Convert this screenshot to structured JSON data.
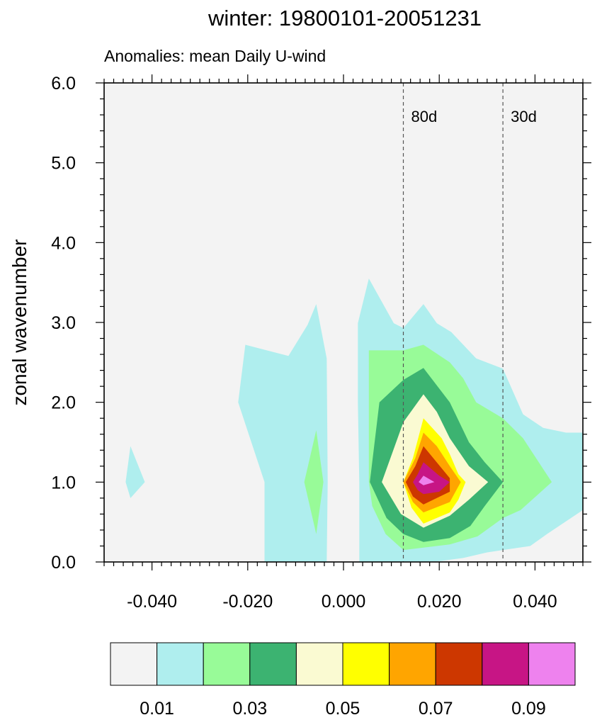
{
  "chart_data": {
    "type": "contour",
    "title": "winter: 19800101-20051231",
    "subtitle": "Anomalies: mean Daily U-wind",
    "xlabel": "",
    "ylabel": "zonal wavenumber",
    "xlim": [
      -0.05,
      0.05
    ],
    "ylim": [
      0,
      6
    ],
    "x_major_ticks": [
      -0.04,
      -0.02,
      0.0,
      0.02,
      0.04
    ],
    "x_tick_labels": [
      "-0.040",
      "-0.020",
      "0.000",
      "0.020",
      "0.040"
    ],
    "y_major_ticks": [
      0,
      1,
      2,
      3,
      4,
      5,
      6
    ],
    "y_tick_labels": [
      "0.0",
      "1.0",
      "2.0",
      "3.0",
      "4.0",
      "5.0",
      "6.0"
    ],
    "grid": false,
    "background_color": "#f3f3f3",
    "reference_lines": [
      {
        "x": 0.0125,
        "label": "80d"
      },
      {
        "x": 0.0333,
        "label": "30d"
      }
    ],
    "colorbar": {
      "colors": [
        "#f3f3f3",
        "#afeeee",
        "#98fb98",
        "#3cb371",
        "#fafad2",
        "#ffff00",
        "#ffa500",
        "#cd3700",
        "#c71585",
        "#ee82ee"
      ],
      "tick_labels": [
        "0.01",
        "0.03",
        "0.05",
        "0.07",
        "0.09"
      ],
      "levels": [
        0.01,
        0.02,
        0.03,
        0.04,
        0.05,
        0.06,
        0.07,
        0.08,
        0.09
      ]
    },
    "contour_levels": [
      {
        "level": 0.01,
        "color": "#afeeee",
        "polygons": [
          [
            [
              -0.0455,
              1.0
            ],
            [
              -0.0445,
              1.45
            ],
            [
              -0.0415,
              1.0
            ],
            [
              -0.0445,
              0.8
            ]
          ],
          [
            [
              -0.0165,
              0.0
            ],
            [
              -0.0165,
              1.0
            ],
            [
              -0.022,
              2.0
            ],
            [
              -0.0205,
              2.72
            ],
            [
              -0.0115,
              2.58
            ],
            [
              -0.0075,
              2.97
            ],
            [
              -0.0057,
              3.23
            ],
            [
              -0.0035,
              2.55
            ],
            [
              -0.0033,
              1.0
            ],
            [
              -0.0035,
              0.0
            ]
          ],
          [
            [
              0.0033,
              0.0
            ],
            [
              0.0033,
              1.0
            ],
            [
              0.003,
              2.0
            ],
            [
              0.003,
              2.99
            ],
            [
              0.0053,
              3.55
            ],
            [
              0.0105,
              2.99
            ],
            [
              0.0125,
              2.93
            ],
            [
              0.0167,
              3.23
            ],
            [
              0.0195,
              2.99
            ],
            [
              0.0225,
              2.88
            ],
            [
              0.0277,
              2.55
            ],
            [
              0.0333,
              2.42
            ],
            [
              0.0375,
              1.85
            ],
            [
              0.0417,
              1.68
            ],
            [
              0.0465,
              1.62
            ],
            [
              0.05,
              1.62
            ],
            [
              0.05,
              0.65
            ],
            [
              0.0425,
              0.35
            ],
            [
              0.039,
              0.2
            ],
            [
              0.0333,
              0.15
            ],
            [
              0.03,
              0.12
            ],
            [
              0.025,
              0.05
            ],
            [
              0.02,
              0.01
            ],
            [
              0.015,
              0.0
            ]
          ]
        ]
      },
      {
        "level": 0.02,
        "color": "#98fb98",
        "polygons": [
          [
            [
              -0.0082,
              1.0
            ],
            [
              -0.0057,
              1.65
            ],
            [
              -0.0042,
              1.0
            ],
            [
              -0.0057,
              0.35
            ]
          ],
          [
            [
              0.0053,
              1.0
            ],
            [
              0.0053,
              2.0
            ],
            [
              0.0053,
              2.65
            ],
            [
              0.009,
              2.65
            ],
            [
              0.0125,
              2.65
            ],
            [
              0.0167,
              2.72
            ],
            [
              0.0222,
              2.5
            ],
            [
              0.025,
              2.3
            ],
            [
              0.0277,
              2.0
            ],
            [
              0.0333,
              1.8
            ],
            [
              0.0375,
              1.55
            ],
            [
              0.0435,
              1.0
            ],
            [
              0.037,
              0.65
            ],
            [
              0.0333,
              0.55
            ],
            [
              0.028,
              0.32
            ],
            [
              0.0222,
              0.22
            ],
            [
              0.0167,
              0.18
            ],
            [
              0.0125,
              0.15
            ],
            [
              0.0088,
              0.35
            ],
            [
              0.006,
              0.7
            ]
          ]
        ]
      },
      {
        "level": 0.03,
        "color": "#3cb371",
        "polygons": [
          [
            [
              0.0055,
              1.0
            ],
            [
              0.0075,
              2.0
            ],
            [
              0.0125,
              2.28
            ],
            [
              0.0167,
              2.43
            ],
            [
              0.0222,
              2.0
            ],
            [
              0.0262,
              1.5
            ],
            [
              0.0295,
              1.25
            ],
            [
              0.0333,
              1.0
            ],
            [
              0.0295,
              0.7
            ],
            [
              0.0265,
              0.45
            ],
            [
              0.0222,
              0.3
            ],
            [
              0.0167,
              0.25
            ],
            [
              0.0125,
              0.35
            ],
            [
              0.009,
              0.55
            ]
          ]
        ]
      },
      {
        "level": 0.04,
        "color": "#fafad2",
        "polygons": [
          [
            [
              0.008,
              1.0
            ],
            [
              0.0125,
              1.75
            ],
            [
              0.0167,
              2.1
            ],
            [
              0.0195,
              1.88
            ],
            [
              0.0222,
              1.55
            ],
            [
              0.0262,
              1.2
            ],
            [
              0.0302,
              1.0
            ],
            [
              0.0262,
              0.78
            ],
            [
              0.0222,
              0.58
            ],
            [
              0.0167,
              0.43
            ],
            [
              0.012,
              0.6
            ]
          ]
        ]
      },
      {
        "level": 0.05,
        "color": "#ffff00",
        "polygons": [
          [
            [
              0.0125,
              1.0
            ],
            [
              0.0145,
              1.3
            ],
            [
              0.0167,
              1.8
            ],
            [
              0.0205,
              1.55
            ],
            [
              0.0222,
              1.35
            ],
            [
              0.024,
              1.1
            ],
            [
              0.0255,
              1.0
            ],
            [
              0.024,
              0.78
            ],
            [
              0.0222,
              0.62
            ],
            [
              0.0167,
              0.48
            ],
            [
              0.0142,
              0.68
            ]
          ]
        ]
      },
      {
        "level": 0.06,
        "color": "#ffa500",
        "polygons": [
          [
            [
              0.0125,
              1.0
            ],
            [
              0.015,
              1.3
            ],
            [
              0.0167,
              1.62
            ],
            [
              0.0195,
              1.45
            ],
            [
              0.0222,
              1.2
            ],
            [
              0.0245,
              1.0
            ],
            [
              0.0222,
              0.75
            ],
            [
              0.0167,
              0.62
            ],
            [
              0.0145,
              0.75
            ]
          ]
        ]
      },
      {
        "level": 0.07,
        "color": "#cd3700",
        "polygons": [
          [
            [
              0.013,
              1.0
            ],
            [
              0.015,
              1.2
            ],
            [
              0.0167,
              1.45
            ],
            [
              0.0222,
              1.05
            ],
            [
              0.0222,
              0.88
            ],
            [
              0.0167,
              0.72
            ],
            [
              0.0145,
              0.82
            ]
          ]
        ]
      },
      {
        "level": 0.08,
        "color": "#c71585",
        "polygons": [
          [
            [
              0.0145,
              1.0
            ],
            [
              0.0155,
              1.1
            ],
            [
              0.0167,
              1.25
            ],
            [
              0.02,
              1.08
            ],
            [
              0.0222,
              1.0
            ],
            [
              0.02,
              0.88
            ],
            [
              0.0167,
              0.85
            ],
            [
              0.0155,
              0.9
            ]
          ]
        ]
      },
      {
        "level": 0.09,
        "color": "#ee82ee",
        "polygons": [
          [
            [
              0.0157,
              1.0
            ],
            [
              0.0167,
              1.08
            ],
            [
              0.019,
              1.0
            ],
            [
              0.0167,
              0.96
            ]
          ]
        ]
      }
    ]
  }
}
